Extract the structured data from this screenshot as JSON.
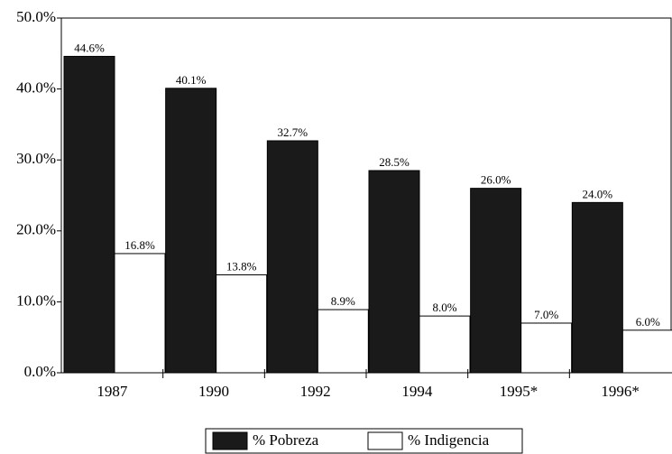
{
  "chart_data": {
    "type": "bar",
    "categories": [
      "1987",
      "1990",
      "1992",
      "1994",
      "1995*",
      "1996*"
    ],
    "series": [
      {
        "name": "% Pobreza",
        "color": "#1a1a1a",
        "values": [
          44.6,
          40.1,
          32.7,
          28.5,
          26.0,
          24.0
        ],
        "value_labels": [
          "44.6%",
          "40.1%",
          "32.7%",
          "28.5%",
          "26.0%",
          "24.0%"
        ]
      },
      {
        "name": "% Indigencia",
        "color": "#ffffff",
        "values": [
          16.8,
          13.8,
          8.9,
          8.0,
          7.0,
          6.0
        ],
        "value_labels": [
          "16.8%",
          "13.8%",
          "8.9%",
          "8.0%",
          "7.0%",
          "6.0%"
        ]
      }
    ],
    "ylim": [
      0,
      50
    ],
    "yticks": [
      {
        "value": 0,
        "label": "0.0%"
      },
      {
        "value": 10,
        "label": "10.0%"
      },
      {
        "value": 20,
        "label": "20.0%"
      },
      {
        "value": 30,
        "label": "30.0%"
      },
      {
        "value": 40,
        "label": "40.0%"
      },
      {
        "value": 50,
        "label": "50.0%"
      }
    ],
    "grid": false,
    "legend": "bottom"
  }
}
